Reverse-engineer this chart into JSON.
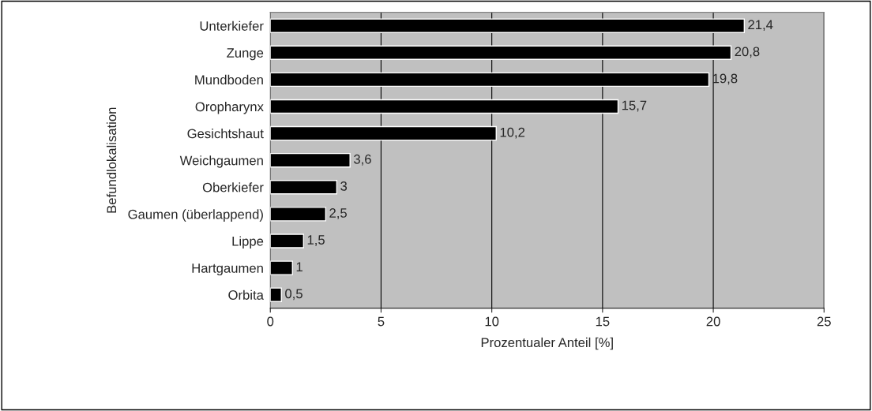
{
  "chart_data": {
    "type": "bar",
    "orientation": "horizontal",
    "xlabel": "Prozentualer Anteil [%]",
    "ylabel": "Befundlokalisation",
    "categories": [
      "Unterkiefer",
      "Zunge",
      "Mundboden",
      "Oropharynx",
      "Gesichtshaut",
      "Weichgaumen",
      "Oberkiefer",
      "Gaumen (überlappend)",
      "Lippe",
      "Hartgaumen",
      "Orbita"
    ],
    "values": [
      21.4,
      20.8,
      19.8,
      15.7,
      10.2,
      3.6,
      3,
      2.5,
      1.5,
      1,
      0.5
    ],
    "value_labels": [
      "21,4",
      "20,8",
      "19,8",
      "15,7",
      "10,2",
      "3,6",
      "3",
      "2,5",
      "1,5",
      "1",
      "0,5"
    ],
    "color": "#000000",
    "xlim": [
      0,
      25
    ],
    "xticks": [
      0,
      5,
      10,
      15,
      20,
      25
    ],
    "grid": "x",
    "legend": false
  }
}
